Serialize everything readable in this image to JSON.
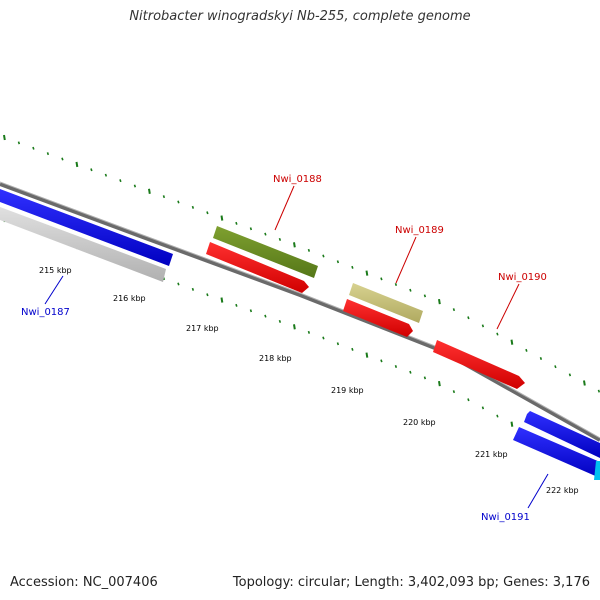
{
  "title": "Nitrobacter winogradskyi Nb-255, complete genome",
  "footer": {
    "accession": "Accession: NC_007406",
    "summary": "Topology: circular; Length: 3,402,093 bp; Genes: 3,176"
  },
  "genome_map": {
    "ticks": [
      {
        "kbp": 215,
        "label": "215 kbp"
      },
      {
        "kbp": 216,
        "label": "216 kbp"
      },
      {
        "kbp": 217,
        "label": "217 kbp"
      },
      {
        "kbp": 218,
        "label": "218 kbp"
      },
      {
        "kbp": 219,
        "label": "219 kbp"
      },
      {
        "kbp": 220,
        "label": "220 kbp"
      },
      {
        "kbp": 221,
        "label": "221 kbp"
      },
      {
        "kbp": 222,
        "label": "222 kbp"
      }
    ],
    "genes": [
      {
        "label": "Nwi_0187",
        "label_color": "#0000cc",
        "feature_color": "#1010ee",
        "strand": "minus"
      },
      {
        "label": "Nwi_0188",
        "label_color": "#cc0000",
        "feature_color": "#6b8e23",
        "strand": "plus"
      },
      {
        "label": "Nwi_0189",
        "label_color": "#cc0000",
        "feature_color": "#c8c27a",
        "strand": "plus"
      },
      {
        "label": "Nwi_0190",
        "label_color": "#cc0000",
        "feature_color": "#ff1010",
        "strand": "plus"
      },
      {
        "label": "Nwi_0191",
        "label_color": "#0000cc",
        "feature_color": "#1010ee",
        "strand": "minus"
      }
    ],
    "colors": {
      "backbone": "#808080",
      "cds_plus": "#ff1010",
      "cds_minus": "#c8c8c8",
      "gene_minus": "#1010ee",
      "tick_marks": "#1a7a1a",
      "partial_gene": "#00c0f0"
    }
  }
}
